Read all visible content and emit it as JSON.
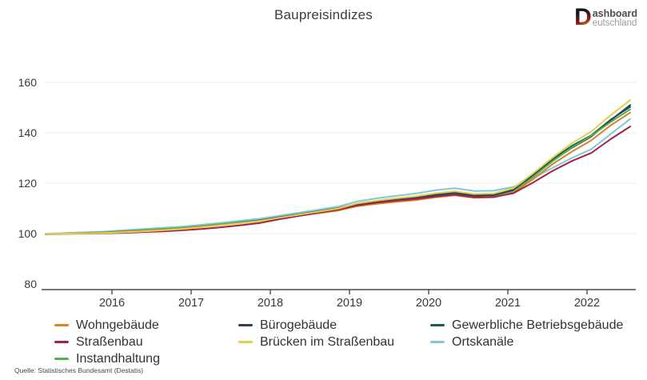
{
  "title": "Baupreisindizes",
  "logo": {
    "d": "D",
    "line1": "ashboard",
    "line2": "eutschland"
  },
  "source": "Quelle: Statistisches Bundesamt (Destatis)",
  "chart_data": {
    "type": "line",
    "title": "Baupreisindizes",
    "xlabel": "",
    "ylabel": "",
    "y_ticks": [
      80,
      100,
      120,
      140,
      160
    ],
    "ylim": [
      80,
      165
    ],
    "x_tick_years": [
      2016,
      2017,
      2018,
      2019,
      2020,
      2021,
      2022
    ],
    "grid": true,
    "legend_position": "bottom",
    "x_quarters": [
      "2015-Q1",
      "2015-Q2",
      "2015-Q3",
      "2015-Q4",
      "2016-Q1",
      "2016-Q2",
      "2016-Q3",
      "2016-Q4",
      "2017-Q1",
      "2017-Q2",
      "2017-Q3",
      "2017-Q4",
      "2018-Q1",
      "2018-Q2",
      "2018-Q3",
      "2018-Q4",
      "2019-Q1",
      "2019-Q2",
      "2019-Q3",
      "2019-Q4",
      "2020-Q1",
      "2020-Q2",
      "2020-Q3",
      "2020-Q4",
      "2021-Q1",
      "2021-Q2",
      "2021-Q3",
      "2021-Q4",
      "2022-Q1",
      "2022-Q2",
      "2022-Q3"
    ],
    "series": [
      {
        "name": "Wohngebäude",
        "color": "#d9822b",
        "values": [
          99.8,
          100.0,
          100.2,
          100.3,
          100.7,
          101.1,
          101.5,
          102.0,
          102.7,
          103.4,
          104.1,
          104.9,
          106.1,
          107.1,
          108.1,
          109.1,
          110.9,
          111.8,
          112.6,
          113.3,
          114.4,
          115.2,
          114.2,
          114.4,
          116.3,
          121.5,
          127.5,
          132.5,
          137.0,
          143.0,
          148.0
        ]
      },
      {
        "name": "Bürogebäude",
        "color": "#2f3f5c",
        "values": [
          99.8,
          100.0,
          100.2,
          100.4,
          100.8,
          101.2,
          101.7,
          102.2,
          102.9,
          103.6,
          104.4,
          105.2,
          106.4,
          107.5,
          108.6,
          109.7,
          111.5,
          112.5,
          113.3,
          114.0,
          115.2,
          116.0,
          115.0,
          115.2,
          117.2,
          122.8,
          128.8,
          134.0,
          138.5,
          145.0,
          151.0
        ]
      },
      {
        "name": "Gewerbliche Betriebsgebäude",
        "color": "#1d5c4d",
        "values": [
          99.8,
          100.1,
          100.3,
          100.5,
          100.9,
          101.4,
          101.9,
          102.4,
          103.1,
          103.9,
          104.7,
          105.5,
          106.7,
          107.9,
          109.0,
          110.1,
          111.8,
          112.8,
          113.7,
          114.4,
          115.6,
          116.4,
          115.4,
          115.6,
          117.6,
          123.2,
          129.5,
          134.8,
          139.0,
          145.2,
          150.3
        ]
      },
      {
        "name": "Straßenbau",
        "color": "#a32347",
        "values": [
          99.7,
          99.9,
          100.0,
          100.1,
          100.3,
          100.6,
          100.9,
          101.3,
          101.8,
          102.5,
          103.3,
          104.2,
          105.7,
          107.0,
          108.3,
          109.5,
          111.2,
          112.3,
          113.1,
          113.7,
          114.7,
          115.4,
          114.4,
          114.5,
          116.0,
          120.2,
          124.8,
          128.8,
          132.0,
          137.5,
          142.5
        ]
      },
      {
        "name": "Brücken im Straßenbau",
        "color": "#e5ce4d",
        "values": [
          99.8,
          100.0,
          100.1,
          100.2,
          100.5,
          100.9,
          101.3,
          101.8,
          102.5,
          103.3,
          104.1,
          105.0,
          106.3,
          107.5,
          108.7,
          109.9,
          112.0,
          113.1,
          114.0,
          114.8,
          116.0,
          116.8,
          115.7,
          115.9,
          118.0,
          123.8,
          130.0,
          135.8,
          140.5,
          147.0,
          153.0
        ]
      },
      {
        "name": "Ortskanäle",
        "color": "#7dc9da",
        "values": [
          99.9,
          100.2,
          100.5,
          100.8,
          101.3,
          101.8,
          102.3,
          102.8,
          103.5,
          104.3,
          105.1,
          105.9,
          107.1,
          108.3,
          109.5,
          110.7,
          112.8,
          114.0,
          115.0,
          115.9,
          117.2,
          118.0,
          116.9,
          117.0,
          118.5,
          122.0,
          126.0,
          130.0,
          133.5,
          139.5,
          145.5
        ]
      },
      {
        "name": "Instandhaltung",
        "color": "#4fb257",
        "values": [
          99.8,
          100.1,
          100.3,
          100.5,
          101.0,
          101.4,
          101.8,
          102.3,
          103.0,
          103.7,
          104.4,
          105.1,
          106.3,
          107.3,
          108.3,
          109.3,
          111.0,
          111.9,
          112.7,
          113.4,
          114.5,
          115.3,
          114.4,
          114.6,
          116.6,
          122.4,
          128.6,
          134.2,
          138.8,
          144.3,
          149.3
        ]
      }
    ]
  }
}
